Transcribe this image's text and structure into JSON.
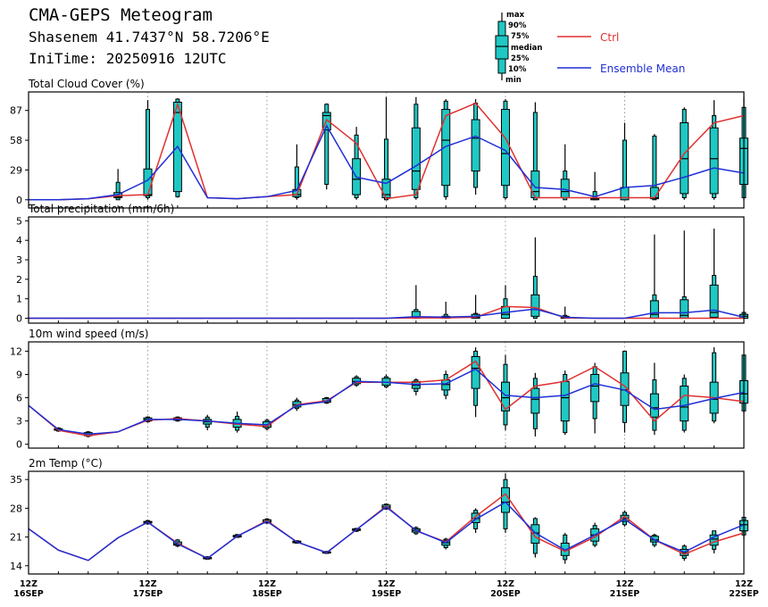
{
  "header": {
    "title": "CMA-GEPS Meteogram",
    "location": "Shasenem 41.7437°N 58.7206°E",
    "init_time": "IniTime: 20250916 12UTC"
  },
  "legend": {
    "box_labels": [
      "max",
      "90%",
      "75%",
      "median",
      "25%",
      "10%",
      "min"
    ],
    "ctrl_label": "Ctrl",
    "mean_label": "Ensemble Mean",
    "ctrl_color": "#e03030",
    "mean_color": "#1f2fd6",
    "box_color": "#1fc8c4"
  },
  "x_axis": {
    "ticks": [
      {
        "top": "12Z",
        "bottom": "16SEP",
        "step": 0
      },
      {
        "top": "12Z",
        "bottom": "17SEP",
        "step": 4
      },
      {
        "top": "12Z",
        "bottom": "18SEP",
        "step": 8
      },
      {
        "top": "12Z",
        "bottom": "19SEP",
        "step": 12
      },
      {
        "top": "12Z",
        "bottom": "20SEP",
        "step": 16
      },
      {
        "top": "12Z",
        "bottom": "21SEP",
        "step": 20
      },
      {
        "top": "12Z",
        "bottom": "22SEP",
        "step": 24
      }
    ]
  },
  "chart_data": [
    {
      "type": "box",
      "title": "Total Cloud Cover (%)",
      "y_ticks": [
        0,
        29,
        58,
        87
      ],
      "ylim": [
        -8,
        105
      ],
      "ctrl": [
        0,
        0,
        1,
        4,
        5,
        93,
        2,
        1,
        3,
        5,
        78,
        55,
        1,
        5,
        82,
        94,
        60,
        2,
        2,
        2,
        2,
        2,
        45,
        75,
        82
      ],
      "mean": [
        0,
        0,
        1,
        5,
        19,
        52,
        2,
        1,
        3,
        9,
        72,
        22,
        16,
        33,
        52,
        62,
        48,
        12,
        10,
        3,
        12,
        14,
        22,
        31,
        26
      ],
      "boxes": [
        null,
        null,
        null,
        [
          0,
          0,
          2,
          3,
          7,
          17,
          30
        ],
        [
          0,
          2,
          4,
          5,
          30,
          88,
          97
        ],
        [
          2,
          3,
          8,
          85,
          95,
          98,
          99
        ],
        null,
        null,
        null,
        [
          0,
          2,
          3,
          5,
          10,
          32,
          54
        ],
        [
          10,
          15,
          68,
          82,
          85,
          93,
          94
        ],
        [
          0,
          2,
          5,
          20,
          40,
          63,
          71
        ],
        [
          0,
          0,
          2,
          5,
          20,
          59,
          100
        ],
        [
          0,
          2,
          10,
          28,
          70,
          93,
          100
        ],
        [
          0,
          3,
          14,
          58,
          88,
          96,
          98
        ],
        [
          5,
          12,
          28,
          60,
          78,
          94,
          98
        ],
        [
          0,
          2,
          14,
          45,
          88,
          96,
          98
        ],
        [
          0,
          0,
          2,
          8,
          28,
          85,
          95
        ],
        [
          0,
          0,
          2,
          8,
          20,
          28,
          54
        ],
        [
          0,
          0,
          0,
          1,
          2,
          8,
          27
        ],
        [
          0,
          0,
          0,
          2,
          12,
          58,
          75
        ],
        [
          0,
          0,
          1,
          2,
          12,
          62,
          64
        ],
        [
          0,
          2,
          6,
          40,
          75,
          88,
          90
        ],
        [
          0,
          2,
          6,
          40,
          70,
          82,
          97
        ],
        [
          0,
          2,
          15,
          50,
          60,
          90,
          100
        ]
      ]
    },
    {
      "type": "box",
      "title": "Total precipitation (mm/6h)",
      "y_ticks": [
        0,
        1,
        2,
        3,
        4,
        5
      ],
      "ylim": [
        -0.25,
        5.2
      ],
      "ctrl": [
        0,
        0,
        0,
        0,
        0,
        0,
        0,
        0,
        0,
        0,
        0,
        0,
        0,
        0.02,
        0.02,
        0.05,
        0.6,
        0.55,
        0.02,
        0,
        0,
        0,
        0,
        0,
        0
      ],
      "mean": [
        0,
        0,
        0,
        0,
        0,
        0,
        0,
        0,
        0,
        0,
        0,
        0,
        0,
        0.08,
        0.06,
        0.1,
        0.3,
        0.48,
        0.05,
        0,
        0,
        0.28,
        0.28,
        0.42,
        0.05
      ],
      "boxes": [
        null,
        null,
        null,
        null,
        null,
        null,
        null,
        null,
        null,
        null,
        null,
        null,
        null,
        [
          0,
          0,
          0,
          0.05,
          0.35,
          0.45,
          1.7
        ],
        [
          0,
          0,
          0,
          0.02,
          0.1,
          0.2,
          0.85
        ],
        [
          0,
          0,
          0,
          0.05,
          0.2,
          0.25,
          1.2
        ],
        [
          0,
          0,
          0,
          0.2,
          0.6,
          1.0,
          1.7
        ],
        [
          0,
          0,
          0.1,
          0.45,
          1.2,
          2.15,
          4.15
        ],
        [
          0,
          0,
          0,
          0.02,
          0.1,
          0.15,
          0.6
        ],
        null,
        null,
        [
          0,
          0,
          0,
          0.2,
          0.9,
          1.2,
          4.3
        ],
        [
          0,
          0,
          0,
          0.15,
          0.95,
          1.1,
          4.5
        ],
        [
          0,
          0,
          0.05,
          0.3,
          1.7,
          2.2,
          4.6
        ],
        [
          0,
          0,
          0,
          0.1,
          0.2,
          0.3,
          0.3
        ]
      ]
    },
    {
      "type": "box",
      "title": "10m wind speed (m/s)",
      "y_ticks": [
        0,
        3,
        6,
        9,
        12
      ],
      "ylim": [
        -0.5,
        13.2
      ],
      "ctrl": [
        5.0,
        1.8,
        1.1,
        1.6,
        3.1,
        3.3,
        3.0,
        2.6,
        2.3,
        5.1,
        5.6,
        8.0,
        8.0,
        8.0,
        8.3,
        10.7,
        4.5,
        7.5,
        8.1,
        10.0,
        7.5,
        3.0,
        6.3,
        6.0,
        5.5
      ],
      "mean": [
        5.0,
        1.9,
        1.3,
        1.6,
        3.2,
        3.2,
        3.0,
        2.7,
        2.5,
        5.0,
        5.5,
        8.1,
        8.0,
        7.7,
        7.8,
        9.7,
        6.3,
        6.0,
        6.3,
        7.8,
        7.0,
        4.5,
        5.0,
        5.9,
        6.7
      ],
      "boxes": [
        null,
        [
          1.6,
          1.7,
          1.8,
          1.9,
          2.0,
          2.1,
          2.2
        ],
        [
          0.9,
          1.0,
          1.1,
          1.3,
          1.5,
          1.6,
          1.7
        ],
        null,
        [
          2.8,
          2.9,
          3.0,
          3.2,
          3.4,
          3.5,
          3.6
        ],
        [
          2.9,
          3.0,
          3.1,
          3.2,
          3.4,
          3.5,
          3.6
        ],
        [
          1.8,
          2.2,
          2.6,
          2.9,
          3.2,
          3.5,
          3.8
        ],
        [
          1.5,
          1.8,
          2.2,
          2.6,
          3.2,
          3.6,
          4.2
        ],
        [
          1.8,
          2.0,
          2.2,
          2.5,
          2.9,
          3.1,
          3.3
        ],
        [
          4.3,
          4.6,
          4.8,
          5.1,
          5.5,
          5.7,
          6.0
        ],
        [
          5.2,
          5.3,
          5.4,
          5.6,
          5.9,
          6.0,
          6.1
        ],
        [
          7.4,
          7.6,
          7.8,
          8.1,
          8.5,
          8.7,
          8.9
        ],
        [
          7.2,
          7.4,
          7.6,
          8.0,
          8.5,
          8.7,
          9.0
        ],
        [
          6.3,
          6.8,
          7.2,
          7.6,
          8.1,
          8.3,
          8.5
        ],
        [
          5.8,
          6.3,
          7.0,
          7.7,
          8.3,
          9.0,
          9.5
        ],
        [
          3.5,
          5.0,
          7.2,
          9.8,
          11.3,
          12.0,
          12.5
        ],
        [
          1.8,
          2.5,
          4.3,
          6.0,
          8.0,
          10.3,
          11.5
        ],
        [
          1.0,
          2.0,
          4.0,
          5.8,
          7.2,
          8.5,
          9.2
        ],
        [
          1.2,
          1.5,
          3.0,
          6.0,
          8.1,
          9.0,
          9.5
        ],
        [
          1.4,
          3.3,
          5.5,
          7.5,
          9.0,
          10.0,
          10.5
        ],
        [
          1.5,
          2.8,
          5.0,
          7.0,
          9.2,
          12.0,
          12.0
        ],
        [
          1.2,
          1.8,
          3.5,
          4.7,
          6.5,
          8.3,
          10.5
        ],
        [
          1.5,
          1.8,
          3.0,
          4.8,
          7.5,
          8.5,
          9.0
        ],
        [
          2.7,
          3.0,
          4.0,
          5.8,
          8.0,
          11.8,
          12.5
        ],
        [
          4.0,
          4.3,
          5.3,
          6.5,
          8.2,
          11.5,
          11.5
        ]
      ]
    },
    {
      "type": "box",
      "title": "2m Temp (°C)",
      "y_ticks": [
        14,
        21,
        28,
        35
      ],
      "ylim": [
        12,
        37
      ],
      "ctrl": [
        23.0,
        17.8,
        15.3,
        20.8,
        24.6,
        19.5,
        15.8,
        21.2,
        25.0,
        19.8,
        17.2,
        22.8,
        28.5,
        22.5,
        19.8,
        26.0,
        31.5,
        21.0,
        17.5,
        21.0,
        26.0,
        20.3,
        16.8,
        19.8,
        22.0
      ],
      "mean": [
        23.0,
        17.8,
        15.3,
        20.8,
        24.6,
        19.3,
        15.8,
        21.2,
        24.8,
        19.8,
        17.2,
        22.8,
        28.3,
        22.6,
        19.6,
        25.3,
        29.5,
        22.0,
        17.8,
        21.5,
        25.3,
        20.3,
        17.3,
        21.0,
        24.0
      ],
      "boxes": [
        null,
        null,
        null,
        null,
        [
          24.0,
          24.2,
          24.4,
          24.6,
          24.8,
          25.0,
          25.2
        ],
        [
          18.5,
          18.8,
          19.0,
          19.3,
          19.8,
          20.3,
          20.5
        ],
        [
          15.5,
          15.6,
          15.7,
          15.8,
          16.0,
          16.2,
          16.3
        ],
        [
          20.8,
          20.9,
          21.0,
          21.2,
          21.4,
          21.6,
          21.7
        ],
        [
          24.2,
          24.4,
          24.6,
          24.8,
          25.2,
          25.4,
          25.6
        ],
        [
          19.4,
          19.5,
          19.6,
          19.8,
          20.0,
          20.1,
          20.2
        ],
        [
          16.9,
          17.0,
          17.1,
          17.2,
          17.4,
          17.5,
          17.6
        ],
        [
          22.2,
          22.4,
          22.6,
          22.8,
          23.0,
          23.1,
          23.2
        ],
        [
          27.6,
          27.8,
          28.0,
          28.3,
          28.8,
          29.0,
          29.2
        ],
        [
          21.5,
          21.8,
          22.2,
          22.6,
          23.0,
          23.3,
          23.6
        ],
        [
          18.0,
          18.4,
          19.0,
          19.6,
          20.2,
          20.5,
          20.8
        ],
        [
          22.0,
          23.0,
          24.5,
          25.5,
          26.8,
          27.5,
          28.0
        ],
        [
          22.0,
          23.0,
          27.0,
          29.5,
          33.0,
          35.0,
          36.5
        ],
        [
          16.0,
          17.0,
          19.5,
          22.0,
          24.0,
          25.5,
          25.8
        ],
        [
          14.5,
          15.5,
          16.5,
          17.8,
          19.5,
          21.5,
          22.0
        ],
        [
          18.5,
          19.0,
          20.0,
          21.5,
          23.0,
          23.8,
          24.5
        ],
        [
          23.5,
          24.0,
          24.8,
          25.5,
          26.3,
          27.0,
          27.5
        ],
        [
          18.5,
          19.0,
          19.8,
          20.3,
          21.2,
          21.5,
          21.8
        ],
        [
          15.2,
          15.8,
          16.5,
          17.2,
          18.0,
          18.8,
          19.2
        ],
        [
          17.0,
          18.0,
          19.0,
          20.5,
          21.5,
          22.5,
          22.5
        ],
        [
          20.5,
          21.5,
          22.5,
          24.0,
          25.0,
          25.8,
          26.0
        ]
      ]
    }
  ]
}
